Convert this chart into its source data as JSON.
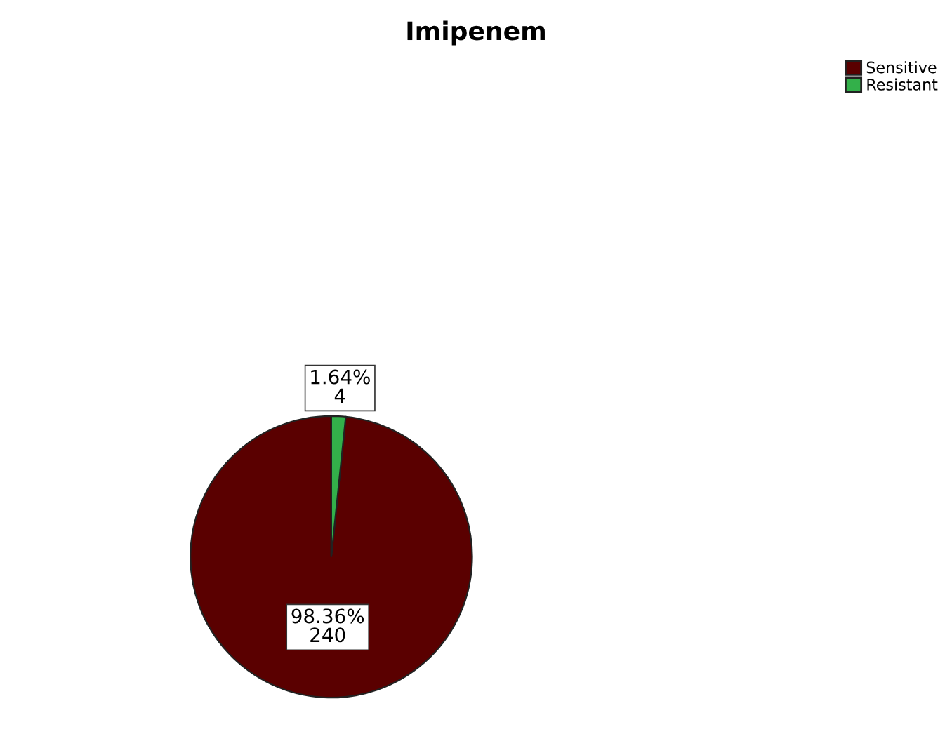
{
  "chart_data": {
    "type": "pie",
    "title": "Imipenem",
    "categories": [
      "Sensitive",
      "Resistant"
    ],
    "values": [
      240,
      4
    ],
    "colors": [
      "#5a0000",
      "#33b04a"
    ],
    "value_labels": [
      "98.36%\n240",
      "1.64%\n4"
    ],
    "legend": "top right"
  }
}
